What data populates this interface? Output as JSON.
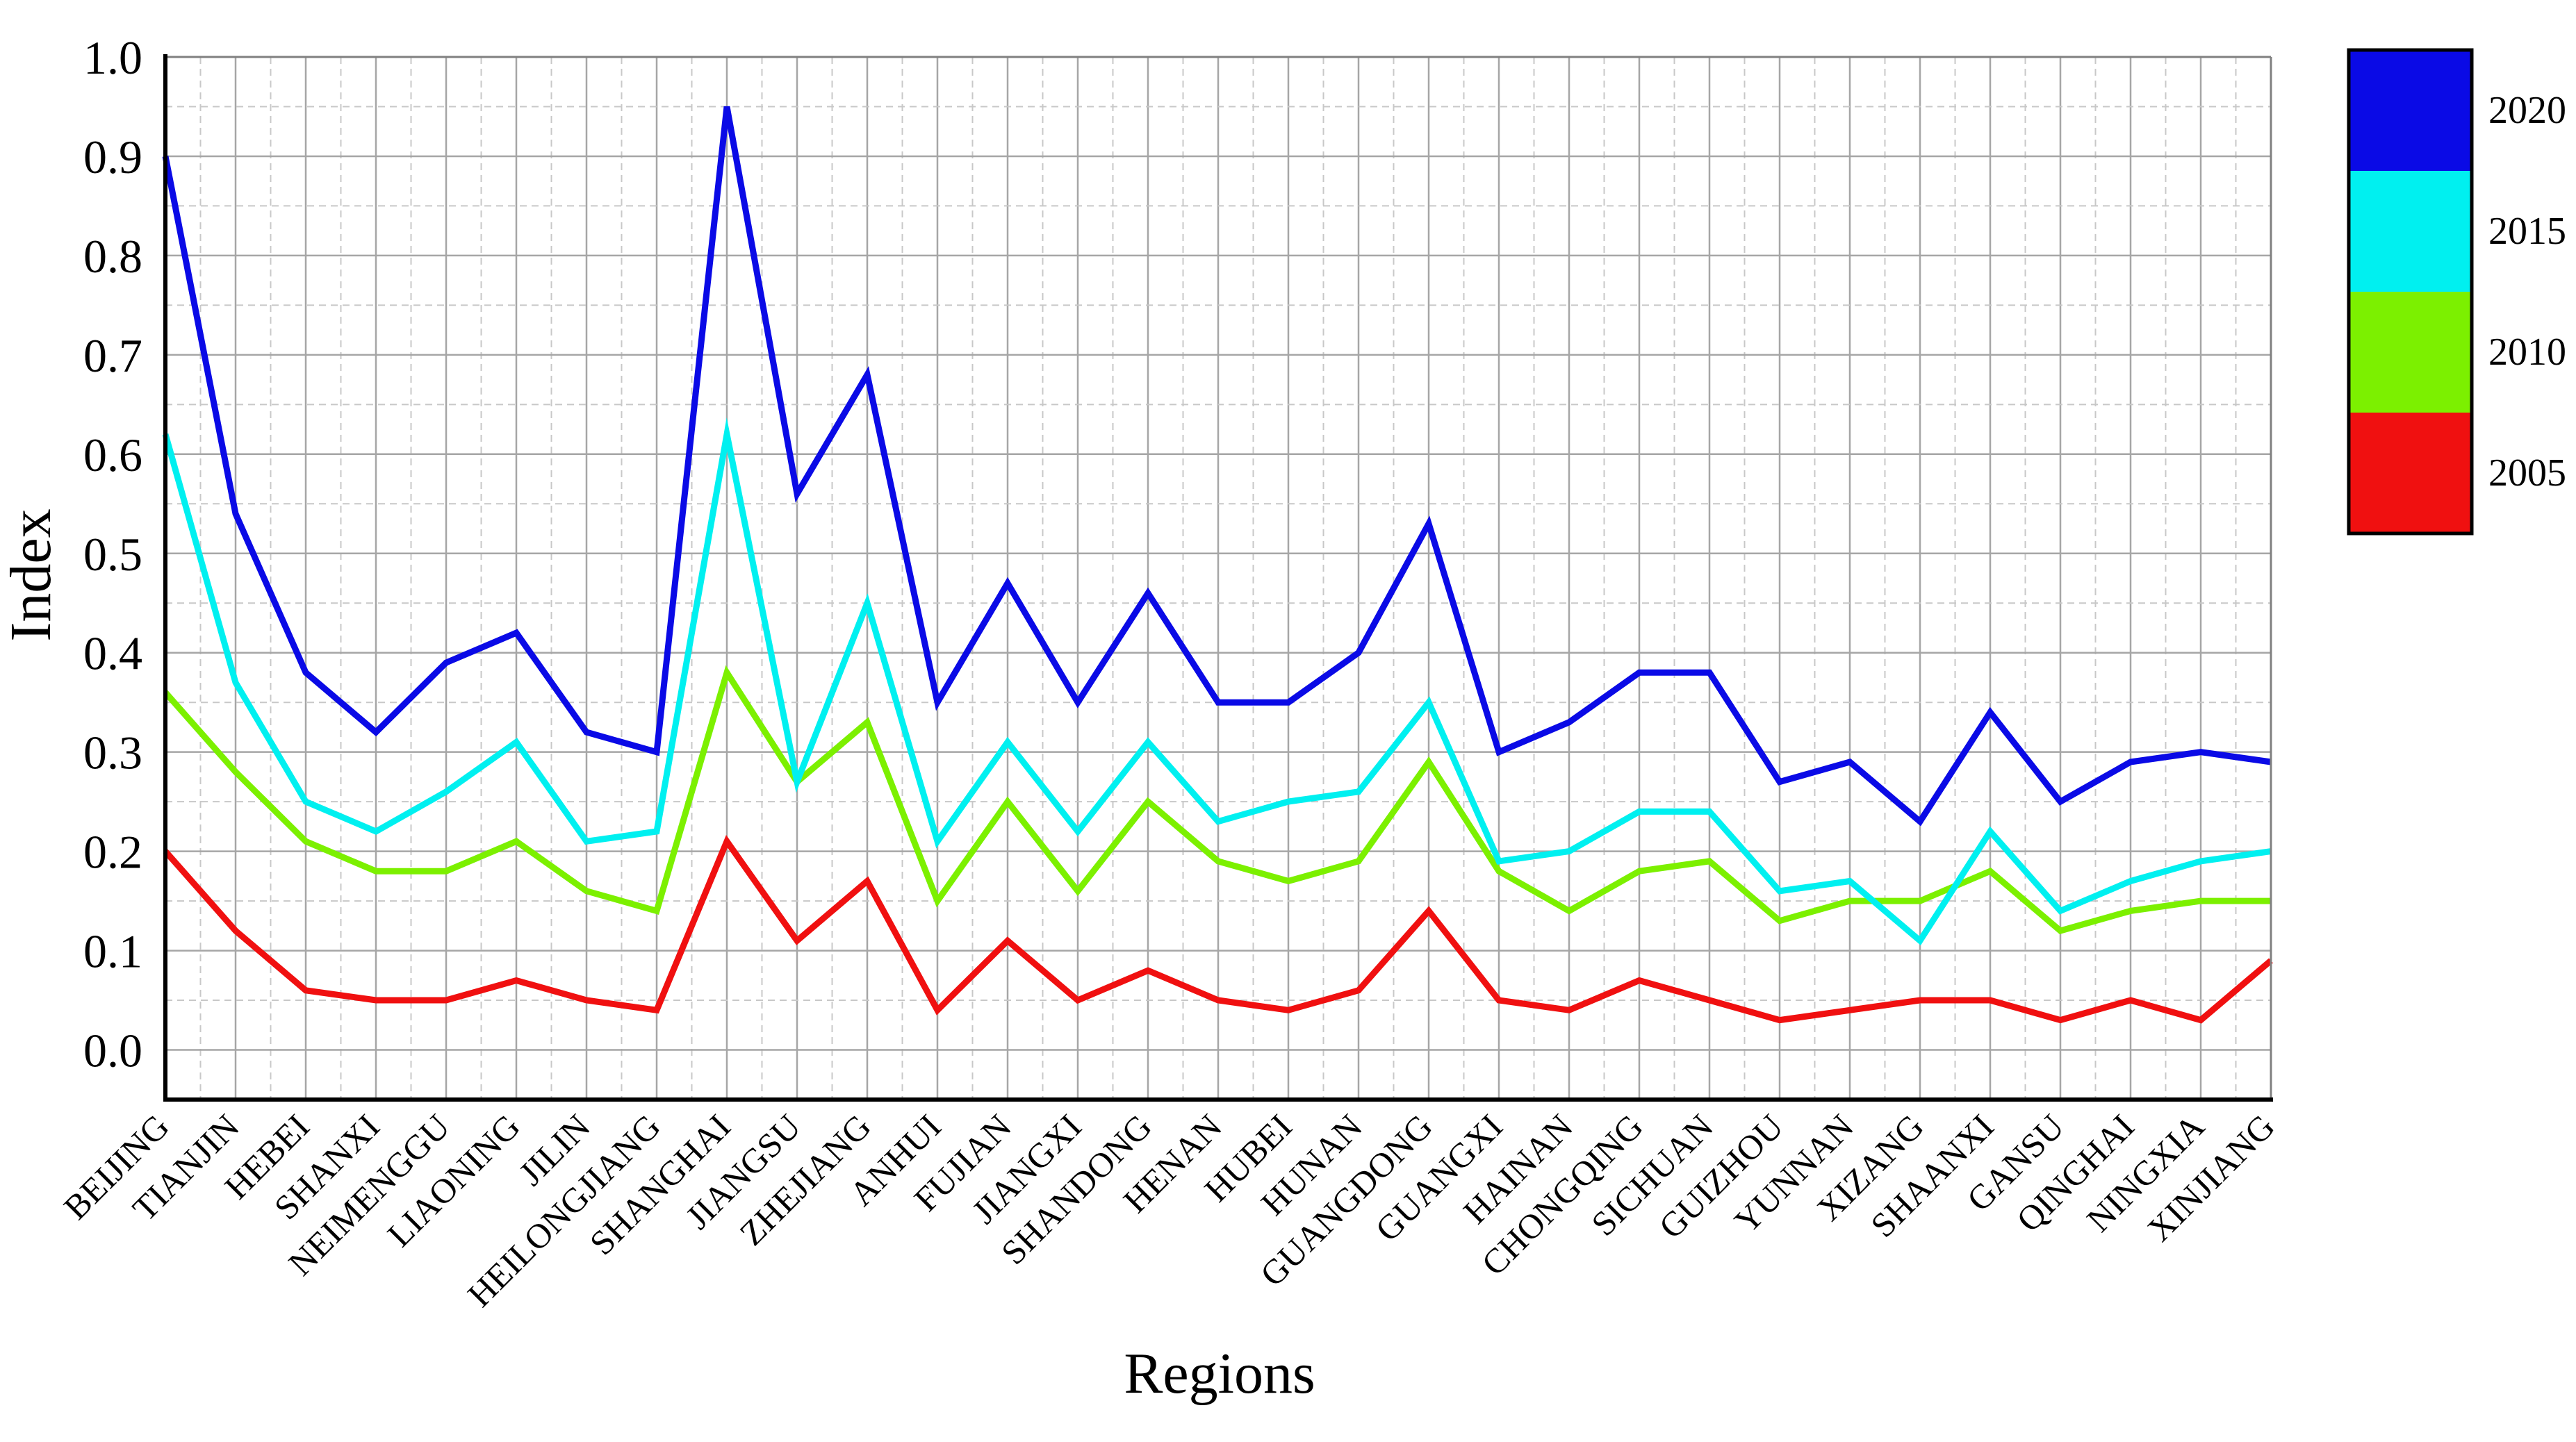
{
  "chart_data": {
    "type": "line",
    "title": "",
    "xlabel": "Regions",
    "ylabel": "Index",
    "ylim": [
      -0.05,
      1.0
    ],
    "yticks": [
      0.0,
      0.1,
      0.2,
      0.3,
      0.4,
      0.5,
      0.6,
      0.7,
      0.8,
      0.9,
      1.0
    ],
    "ytick_labels": [
      "0.0",
      "0.1",
      "0.2",
      "0.3",
      "0.4",
      "0.5",
      "0.6",
      "0.7",
      "0.8",
      "0.9",
      "1.0"
    ],
    "grid": true,
    "legend_position": "right",
    "categories": [
      "BEIJING",
      "TIANJIN",
      "HEBEI",
      "SHANXI",
      "NEIMENGGU",
      "LIAONING",
      "JILIN",
      "HEILONGJIANG",
      "SHANGHAI",
      "JIANGSU",
      "ZHEJIANG",
      "ANHUI",
      "FUJIAN",
      "JIANGXI",
      "SHANDONG",
      "HENAN",
      "HUBEI",
      "HUNAN",
      "GUANGDONG",
      "GUANGXI",
      "HAINAN",
      "CHONGQING",
      "SICHUAN",
      "GUIZHOU",
      "YUNNAN",
      "XIZANG",
      "SHAANXI",
      "GANSU",
      "QINGHAI",
      "NINGXIA",
      "XINJIANG"
    ],
    "series": [
      {
        "name": "2020",
        "color": "#0a0ae6",
        "values": [
          0.9,
          0.54,
          0.38,
          0.32,
          0.39,
          0.42,
          0.32,
          0.3,
          0.95,
          0.56,
          0.68,
          0.35,
          0.47,
          0.35,
          0.46,
          0.35,
          0.35,
          0.4,
          0.53,
          0.3,
          0.33,
          0.38,
          0.38,
          0.27,
          0.29,
          0.23,
          0.34,
          0.25,
          0.29,
          0.3,
          0.29
        ]
      },
      {
        "name": "2015",
        "color": "#00f0f0",
        "values": [
          0.62,
          0.37,
          0.25,
          0.22,
          0.26,
          0.31,
          0.21,
          0.22,
          0.62,
          0.27,
          0.45,
          0.21,
          0.31,
          0.22,
          0.31,
          0.23,
          0.25,
          0.26,
          0.35,
          0.19,
          0.2,
          0.24,
          0.24,
          0.16,
          0.17,
          0.11,
          0.22,
          0.14,
          0.17,
          0.19,
          0.2
        ]
      },
      {
        "name": "2010",
        "color": "#7cf000",
        "values": [
          0.36,
          0.28,
          0.21,
          0.18,
          0.18,
          0.21,
          0.16,
          0.14,
          0.38,
          0.27,
          0.33,
          0.15,
          0.25,
          0.16,
          0.25,
          0.19,
          0.17,
          0.19,
          0.29,
          0.18,
          0.14,
          0.18,
          0.19,
          0.13,
          0.15,
          0.15,
          0.18,
          0.12,
          0.14,
          0.15,
          0.15
        ]
      },
      {
        "name": "2005",
        "color": "#f01010",
        "values": [
          0.2,
          0.12,
          0.06,
          0.05,
          0.05,
          0.07,
          0.05,
          0.04,
          0.21,
          0.11,
          0.17,
          0.04,
          0.11,
          0.05,
          0.08,
          0.05,
          0.04,
          0.06,
          0.14,
          0.05,
          0.04,
          0.07,
          0.05,
          0.03,
          0.04,
          0.05,
          0.05,
          0.03,
          0.05,
          0.03,
          0.09
        ]
      }
    ],
    "legend": {
      "entries": [
        "2020",
        "2015",
        "2010",
        "2005"
      ],
      "colors": [
        "#0a0ae6",
        "#00f0f0",
        "#7cf000",
        "#f01010"
      ]
    }
  }
}
